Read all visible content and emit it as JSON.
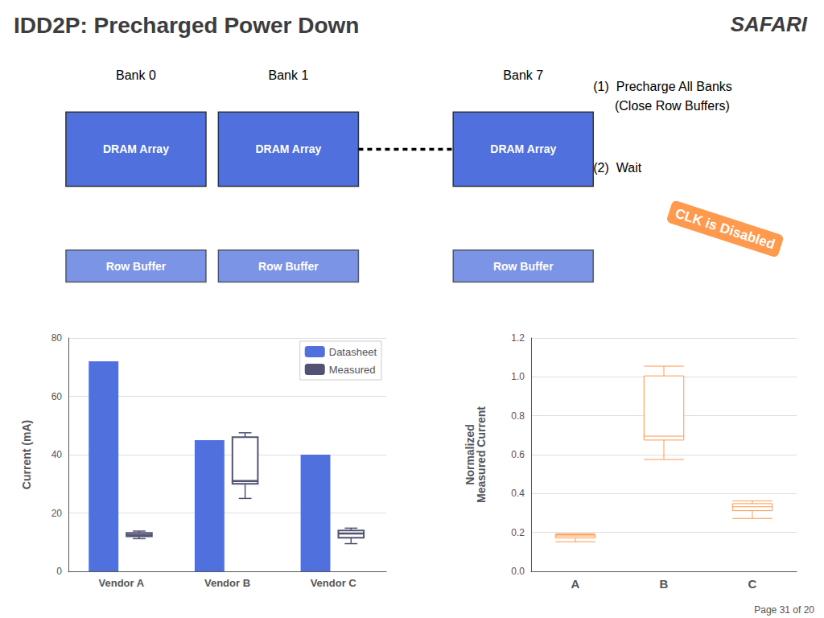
{
  "chart_data": [
    {
      "type": "bar",
      "title": "IDD2P: Precharged Power Down",
      "annotations": [
        "SAFARI",
        "Bank 0",
        "Bank 1",
        "Bank 7",
        "DRAM Array",
        "Row Buffer",
        "(1)  Precharge All Banks\n      (Close Row Buffers)",
        "(2)  Wait",
        "CLK is Disabled",
        "Page 31 of 20"
      ],
      "categories": [
        "Vendor A",
        "Vendor B",
        "Vendor C"
      ],
      "series": [
        {
          "name": "Datasheet",
          "type": "bar",
          "values": [
            72,
            45,
            40
          ]
        },
        {
          "name": "Measured",
          "type": "boxplot",
          "values": [
            [
              11.2,
              12.0,
              12.5,
              13.2,
              13.8
            ],
            [
              25.0,
              30.0,
              31.0,
              46.0,
              47.5
            ],
            [
              9.5,
              11.5,
              13.0,
              14.0,
              14.8
            ]
          ]
        }
      ],
      "ylabel": "Current (mA)",
      "ylim": [
        0,
        80
      ],
      "yticks": [
        0,
        20,
        40,
        60,
        80
      ],
      "grid": true,
      "legend": "upper right"
    },
    {
      "type": "boxplot",
      "categories": [
        "A",
        "B",
        "C"
      ],
      "values": [
        [
          0.152,
          0.172,
          0.182,
          0.188,
          0.193
        ],
        [
          0.575,
          0.675,
          0.695,
          1.005,
          1.055
        ],
        [
          0.272,
          0.312,
          0.332,
          0.348,
          0.362
        ]
      ],
      "ylabel": "Normalized\nMeasured Current",
      "ylim": [
        0.0,
        1.2
      ],
      "yticks": [
        {
          "value": 0,
          "label": "0.0"
        },
        0.2,
        0.4,
        0.6,
        0.8,
        {
          "value": 1,
          "label": "1.0"
        },
        1.2
      ],
      "grid": true
    }
  ]
}
